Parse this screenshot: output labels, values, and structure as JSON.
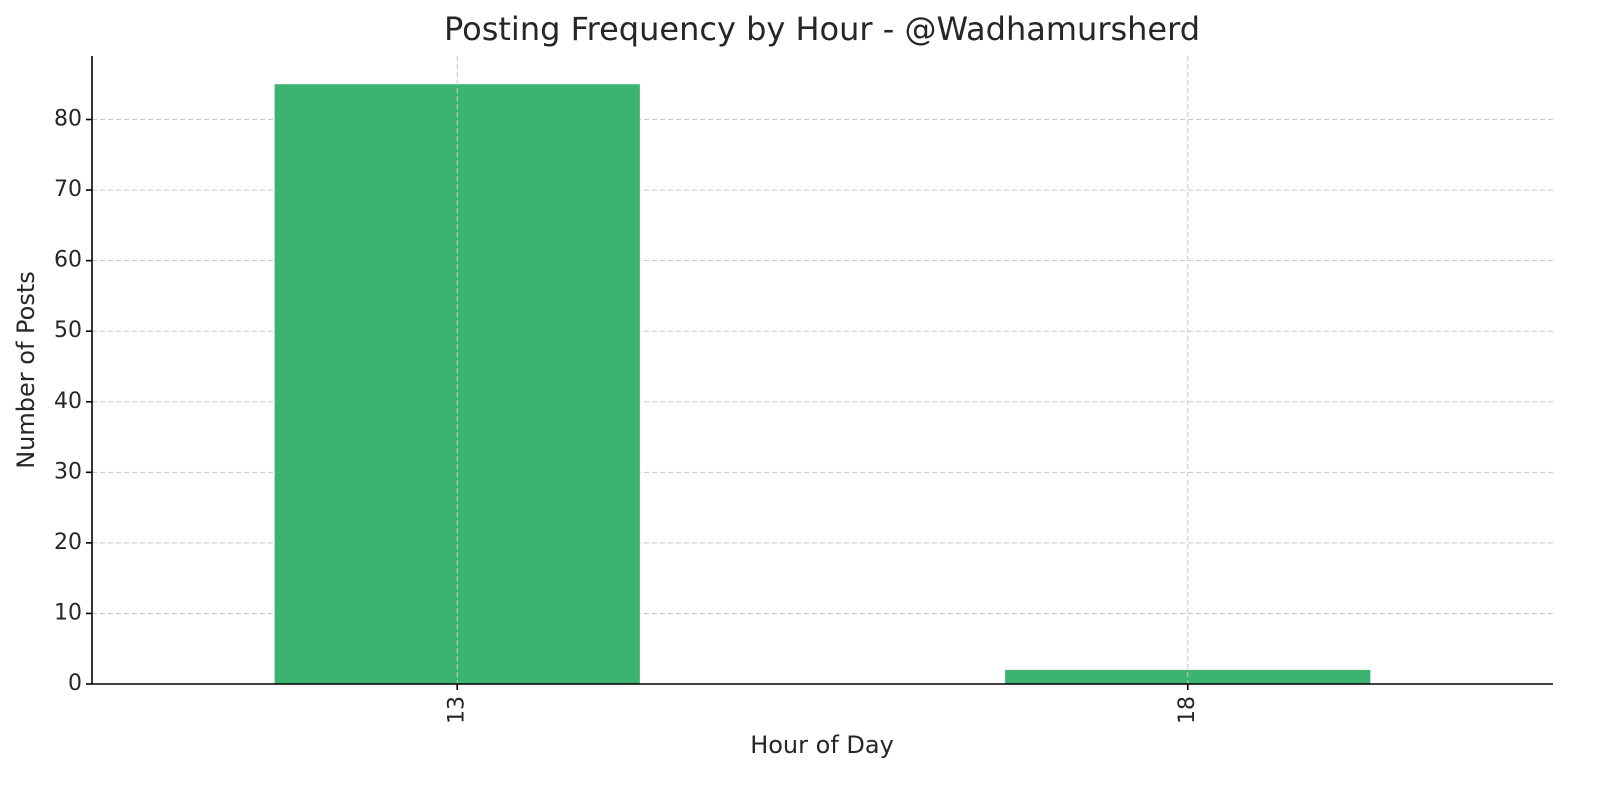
{
  "chart_data": {
    "type": "bar",
    "title": "Posting Frequency by Hour - @Wadhamursherd",
    "x_label": "Hour of Day",
    "y_label": "Number of Posts",
    "categories": [
      "13",
      "18"
    ],
    "values": [
      85,
      2
    ],
    "color": "#3cb371",
    "ylim": [
      0,
      89
    ],
    "yticks": [
      0,
      10,
      20,
      30,
      40,
      50,
      60,
      70,
      80
    ],
    "grid": true
  }
}
